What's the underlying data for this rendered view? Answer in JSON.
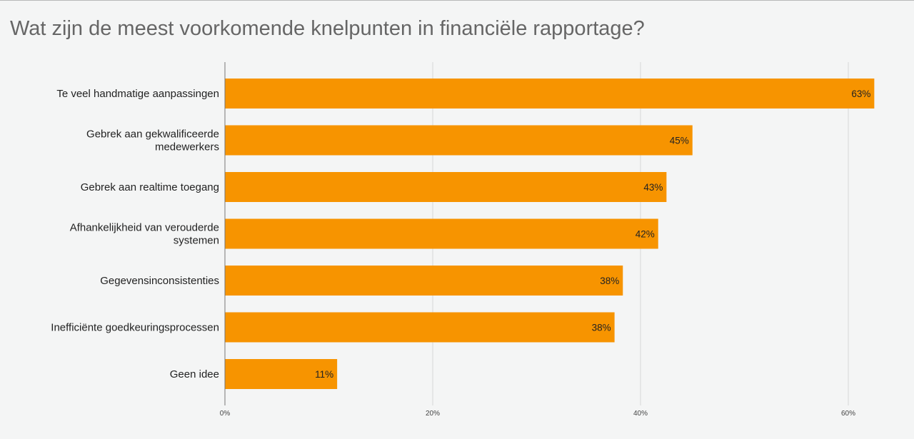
{
  "chart_data": {
    "type": "bar",
    "orientation": "horizontal",
    "title": "Wat zijn de meest voorkomende knelpunten in financiële rapportage?",
    "categories": [
      "Te veel handmatige aanpassingen",
      "Gebrek aan gekwalificeerde medewerkers",
      "Gebrek aan realtime toegang",
      "Afhankelijkheid van verouderde systemen",
      "Gegevensinconsistenties",
      "Inefficiënte goedkeuringsprocessen",
      "Geen idee"
    ],
    "values": [
      62.5,
      45.0,
      42.5,
      41.7,
      38.3,
      37.5,
      10.8
    ],
    "data_labels": [
      "63%",
      "45%",
      "43%",
      "42%",
      "38%",
      "38%",
      "11%"
    ],
    "xlabel": "",
    "ylabel": "",
    "xlim": [
      0,
      68
    ],
    "x_ticks": [
      0,
      20,
      40,
      60
    ],
    "x_tick_labels": [
      "0%",
      "20%",
      "40%",
      "60%"
    ],
    "grid": true,
    "legend": "none",
    "bar_color": "#f79400"
  }
}
